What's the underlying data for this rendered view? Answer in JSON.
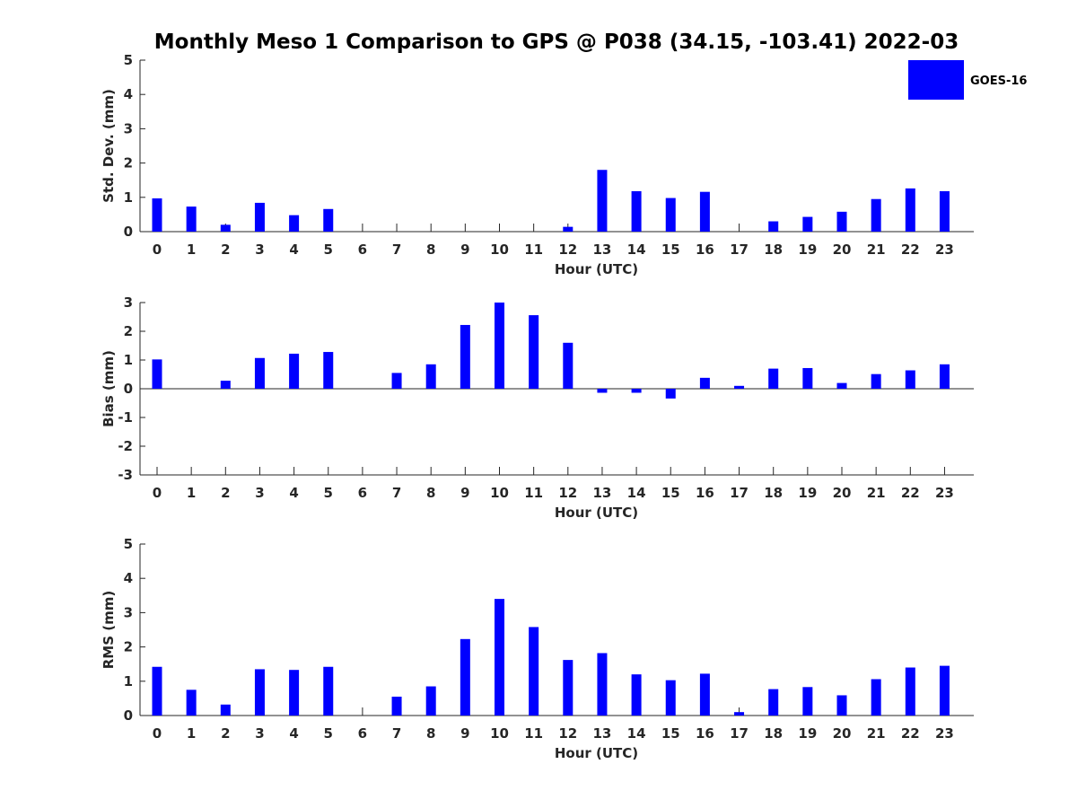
{
  "title": "Monthly Meso 1 Comparison to GPS @ P038 (34.15, -103.41) 2022-03",
  "legend": {
    "label": "GOES-16",
    "color": "#0000ff",
    "placement": "top-right"
  },
  "chart_data": [
    {
      "type": "bar",
      "ylabel": "Std. Dev. (mm)",
      "xlabel": "Hour (UTC)",
      "ylim": [
        0,
        5
      ],
      "yticks": [
        0,
        1,
        2,
        3,
        4,
        5
      ],
      "categories": [
        "0",
        "1",
        "2",
        "3",
        "4",
        "5",
        "6",
        "7",
        "8",
        "9",
        "10",
        "11",
        "12",
        "13",
        "14",
        "15",
        "16",
        "17",
        "18",
        "19",
        "20",
        "21",
        "22",
        "23"
      ],
      "series": [
        {
          "name": "GOES-16",
          "values": [
            0.97,
            0.73,
            0.2,
            0.84,
            0.48,
            0.66,
            null,
            null,
            null,
            null,
            null,
            null,
            0.14,
            1.8,
            1.18,
            0.98,
            1.16,
            null,
            0.3,
            0.43,
            0.58,
            0.95,
            1.26,
            1.18
          ]
        }
      ]
    },
    {
      "type": "bar",
      "ylabel": "Bias (mm)",
      "xlabel": "Hour (UTC)",
      "ylim": [
        -3,
        3
      ],
      "yticks": [
        -3,
        -2,
        -1,
        0,
        1,
        2,
        3
      ],
      "categories": [
        "0",
        "1",
        "2",
        "3",
        "4",
        "5",
        "6",
        "7",
        "8",
        "9",
        "10",
        "11",
        "12",
        "13",
        "14",
        "15",
        "16",
        "17",
        "18",
        "19",
        "20",
        "21",
        "22",
        "23"
      ],
      "series": [
        {
          "name": "GOES-16",
          "values": [
            1.02,
            null,
            0.28,
            1.07,
            1.22,
            1.28,
            null,
            0.55,
            0.85,
            2.22,
            3.0,
            2.56,
            1.6,
            -0.14,
            -0.14,
            -0.34,
            0.38,
            0.1,
            0.7,
            0.72,
            0.2,
            0.51,
            0.64,
            0.85
          ]
        }
      ]
    },
    {
      "type": "bar",
      "ylabel": "RMS (mm)",
      "xlabel": "Hour (UTC)",
      "ylim": [
        0,
        5
      ],
      "yticks": [
        0,
        1,
        2,
        3,
        4,
        5
      ],
      "categories": [
        "0",
        "1",
        "2",
        "3",
        "4",
        "5",
        "6",
        "7",
        "8",
        "9",
        "10",
        "11",
        "12",
        "13",
        "14",
        "15",
        "16",
        "17",
        "18",
        "19",
        "20",
        "21",
        "22",
        "23"
      ],
      "series": [
        {
          "name": "GOES-16",
          "values": [
            1.42,
            0.75,
            0.32,
            1.35,
            1.33,
            1.42,
            null,
            0.55,
            0.85,
            2.23,
            3.4,
            2.58,
            1.62,
            1.82,
            1.2,
            1.03,
            1.22,
            0.1,
            0.77,
            0.83,
            0.59,
            1.06,
            1.4,
            1.45
          ]
        }
      ]
    }
  ]
}
